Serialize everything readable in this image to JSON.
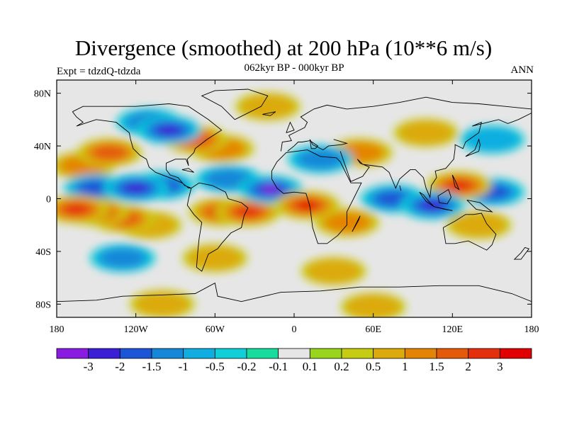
{
  "chart_data": {
    "type": "contour-map",
    "title": "Divergence (smoothed) at 200 hPa (10**6 m/s)",
    "subtitle": "062kyr BP - 000kyr BP",
    "left_label": "Expt = tdzdQ-tdzda",
    "right_label": "ANN",
    "lon_range": [
      -180,
      180
    ],
    "lat_range": [
      -90,
      90
    ],
    "x_ticks": [
      {
        "value": -180,
        "label": "180"
      },
      {
        "value": -120,
        "label": "120W"
      },
      {
        "value": -60,
        "label": "60W"
      },
      {
        "value": 0,
        "label": "0"
      },
      {
        "value": 60,
        "label": "60E"
      },
      {
        "value": 120,
        "label": "120E"
      },
      {
        "value": 180,
        "label": "180"
      }
    ],
    "y_ticks": [
      {
        "value": 80,
        "label": "80N"
      },
      {
        "value": 40,
        "label": "40N"
      },
      {
        "value": 0,
        "label": "0"
      },
      {
        "value": -40,
        "label": "40S"
      },
      {
        "value": -80,
        "label": "80S"
      }
    ],
    "colorbar": {
      "levels": [
        "-3",
        "-2",
        "-1.5",
        "-1",
        "-0.5",
        "-0.2",
        "-0.1",
        "0.1",
        "0.2",
        "0.5",
        "1",
        "1.5",
        "2",
        "3"
      ],
      "colors": [
        "#8a1be0",
        "#3a1fd6",
        "#1c55d6",
        "#1487d8",
        "#10aee0",
        "#10cfd8",
        "#18dc9e",
        "#e6e6e6",
        "#9ad51e",
        "#c6cc12",
        "#dcaa0a",
        "#e48406",
        "#e45a08",
        "#e42e0c",
        "#e00000"
      ]
    },
    "regions": [
      {
        "lon": -160,
        "lat": 25,
        "value": 1.2
      },
      {
        "lon": -140,
        "lat": 35,
        "value": 1.8
      },
      {
        "lon": -165,
        "lat": -8,
        "value": 2.8
      },
      {
        "lon": -150,
        "lat": -10,
        "value": 2.0
      },
      {
        "lon": -130,
        "lat": -15,
        "value": 1.5
      },
      {
        "lon": -110,
        "lat": -20,
        "value": 0.5
      },
      {
        "lon": -150,
        "lat": 8,
        "value": -1.5
      },
      {
        "lon": -120,
        "lat": 8,
        "value": -2.0
      },
      {
        "lon": -100,
        "lat": 10,
        "value": -1.5
      },
      {
        "lon": -95,
        "lat": 52,
        "value": -2.2
      },
      {
        "lon": -110,
        "lat": 58,
        "value": -1.0
      },
      {
        "lon": -75,
        "lat": 45,
        "value": 1.6
      },
      {
        "lon": -55,
        "lat": 38,
        "value": 1.2
      },
      {
        "lon": -50,
        "lat": 15,
        "value": -1.0
      },
      {
        "lon": -18,
        "lat": 7,
        "value": -3.0
      },
      {
        "lon": -55,
        "lat": -10,
        "value": 1.8
      },
      {
        "lon": -35,
        "lat": -10,
        "value": 2.2
      },
      {
        "lon": -60,
        "lat": -45,
        "value": 0.8
      },
      {
        "lon": 10,
        "lat": -5,
        "value": 3.0
      },
      {
        "lon": 40,
        "lat": -18,
        "value": 1.0
      },
      {
        "lon": 20,
        "lat": 30,
        "value": -1.2
      },
      {
        "lon": 50,
        "lat": 35,
        "value": 1.0
      },
      {
        "lon": 75,
        "lat": 0,
        "value": -1.5
      },
      {
        "lon": 105,
        "lat": -5,
        "value": -2.5
      },
      {
        "lon": 125,
        "lat": 10,
        "value": 2.2
      },
      {
        "lon": 150,
        "lat": 5,
        "value": -1.5
      },
      {
        "lon": 140,
        "lat": -20,
        "value": 0.6
      },
      {
        "lon": 100,
        "lat": 50,
        "value": 0.8
      },
      {
        "lon": 150,
        "lat": 45,
        "value": -0.6
      },
      {
        "lon": -20,
        "lat": 70,
        "value": 0.8
      },
      {
        "lon": -130,
        "lat": -45,
        "value": -1.0
      },
      {
        "lon": 30,
        "lat": -55,
        "value": 0.6
      },
      {
        "lon": -100,
        "lat": -80,
        "value": 0.8
      },
      {
        "lon": 60,
        "lat": -82,
        "value": 0.5
      }
    ]
  }
}
